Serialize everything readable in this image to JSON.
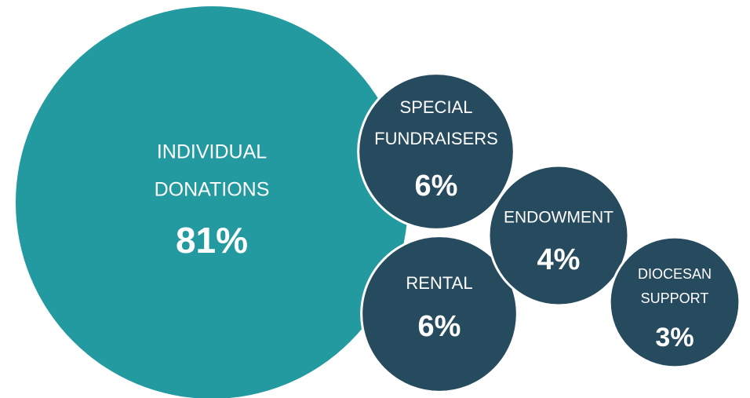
{
  "chart_data": {
    "type": "bubble",
    "categories": [
      [
        "INDIVIDUAL",
        "DONATIONS"
      ],
      [
        "SPECIAL",
        "FUNDRAISERS"
      ],
      [
        "RENTAL"
      ],
      [
        "ENDOWMENT"
      ],
      [
        "DIOCESAN",
        "SUPPORT"
      ]
    ],
    "values": [
      81,
      6,
      6,
      4,
      3
    ],
    "value_labels": [
      "81%",
      "6%",
      "6%",
      "4%",
      "3%"
    ],
    "colors": [
      "#2399a0",
      "#264a5e",
      "#264a5e",
      "#264a5e",
      "#264a5e"
    ]
  }
}
